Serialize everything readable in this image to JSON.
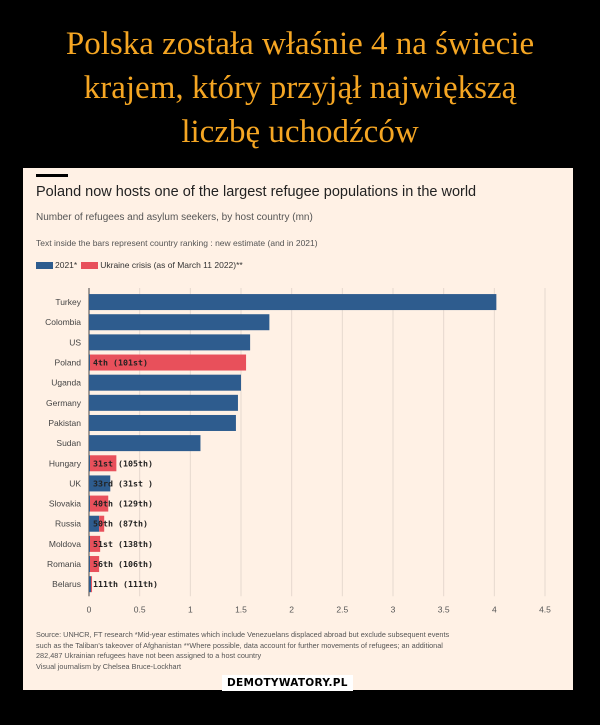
{
  "meme": {
    "title_lines": [
      "Polska została właśnie 4 na świecie",
      "krajem, który przyjął największą",
      "liczbę uchodźców"
    ],
    "watermark": "DEMOTYWATORY.PL"
  },
  "chart_data": {
    "type": "bar",
    "orientation": "horizontal",
    "title": "Poland now hosts one of the largest refugee populations in the world",
    "subtitle": "Number of refugees and asylum seekers, by host country (mn)",
    "note": "Text inside the bars represent country ranking : new estimate (and in 2021)",
    "legend": [
      {
        "name": "2021*",
        "color": "#2e5c8e"
      },
      {
        "name": "Ukraine crisis (as of March 11 2022)**",
        "color": "#e8505b"
      }
    ],
    "categories": [
      "Turkey",
      "Colombia",
      "US",
      "Poland",
      "Uganda",
      "Germany",
      "Pakistan",
      "Sudan",
      "Hungary",
      "UK",
      "Slovakia",
      "Russia",
      "Moldova",
      "Romania",
      "Belarus"
    ],
    "series": [
      {
        "name": "2021*",
        "values": [
          4.02,
          1.78,
          1.59,
          0.01,
          1.5,
          1.47,
          1.45,
          1.1,
          0.01,
          0.21,
          0.01,
          0.1,
          0.01,
          0.01,
          0.02
        ]
      },
      {
        "name": "Ukraine crisis (as of March 11 2022)**",
        "values": [
          0,
          0,
          0,
          1.54,
          0,
          0,
          0,
          0,
          0.26,
          0,
          0.18,
          0.05,
          0.1,
          0.09,
          0.001
        ]
      }
    ],
    "data_labels": [
      "",
      "",
      "",
      "4th (101st)",
      "",
      "",
      "",
      "",
      "31st (105th)",
      "33rd (31st )",
      "40th (129th)",
      "50th (87th)",
      "51st (138th)",
      "56th (106th)",
      "111th (111th)"
    ],
    "x_ticks": [
      "0",
      "0.5",
      "1",
      "1.5",
      "2",
      "2.5",
      "3",
      "3.5",
      "4",
      "4.5"
    ],
    "xlim": [
      0,
      4.5
    ],
    "source_lines": [
      "Source: UNHCR, FT research *Mid-year estimates which include Venezuelans displaced abroad but exclude subsequent events",
      "such as the Taliban's takeover of Afghanistan **Where possible, data account for further movements of refugees; an additional",
      "282,487 Ukrainian refugees have not been assigned to a host country",
      "Visual journalism by Chelsea Bruce-Lockhart"
    ]
  }
}
